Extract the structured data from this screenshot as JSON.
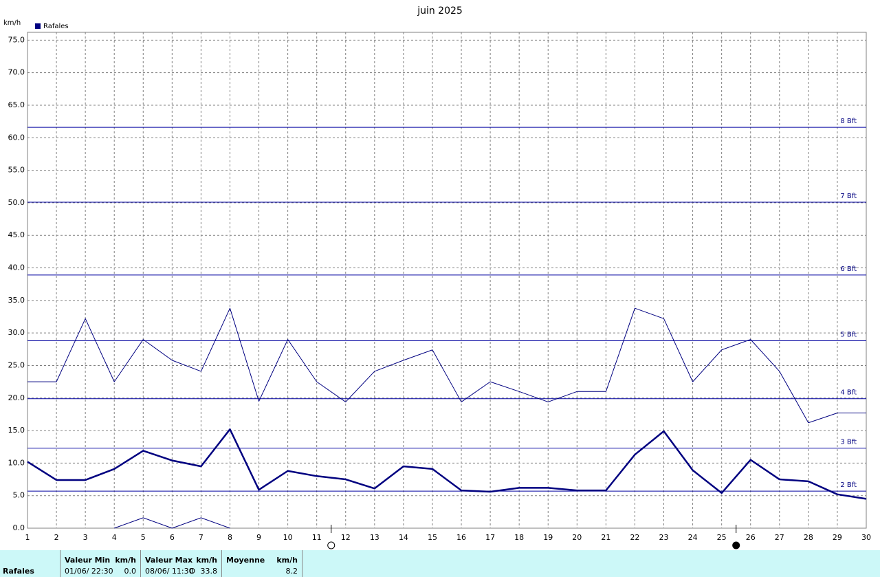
{
  "chart_data": {
    "type": "line",
    "title": "juin 2025",
    "y_label": "km/h",
    "legend": {
      "label": "Rafales",
      "color": "#000080"
    },
    "x": [
      1,
      2,
      3,
      4,
      5,
      6,
      7,
      8,
      9,
      10,
      11,
      12,
      13,
      14,
      15,
      16,
      17,
      18,
      19,
      20,
      21,
      22,
      23,
      24,
      25,
      26,
      27,
      28,
      29,
      30
    ],
    "series": [
      {
        "color": "#000080",
        "width": 1,
        "values": [
          22.5,
          22.5,
          32.2,
          22.5,
          29.0,
          25.8,
          24.1,
          33.8,
          19.5,
          29.0,
          22.5,
          19.4,
          24.1,
          25.8,
          27.4,
          19.4,
          22.5,
          21.0,
          19.4,
          21.0,
          21.0,
          33.8,
          32.2,
          22.5,
          27.4,
          29.0,
          24.1,
          16.2,
          17.7,
          17.7
        ]
      },
      {
        "color": "#000080",
        "width": 2.5,
        "values": [
          10.2,
          7.4,
          7.4,
          9.1,
          11.9,
          10.4,
          9.5,
          15.2,
          5.9,
          8.8,
          8.0,
          7.5,
          6.1,
          9.5,
          9.1,
          5.8,
          5.6,
          6.2,
          6.2,
          5.8,
          5.8,
          11.3,
          14.9,
          8.9,
          5.4,
          10.5,
          7.5,
          7.2,
          5.2,
          4.5
        ]
      },
      {
        "color": "#000080",
        "width": 1,
        "values": [
          null,
          null,
          null,
          0,
          1.6,
          0,
          1.6,
          0,
          null,
          null,
          null,
          null,
          null,
          null,
          null,
          null,
          null,
          null,
          null,
          null,
          null,
          null,
          null,
          null,
          null,
          null,
          null,
          null,
          null,
          null
        ]
      }
    ],
    "xlim": [
      1,
      30
    ],
    "xticks": [
      1,
      2,
      3,
      4,
      5,
      6,
      7,
      8,
      9,
      10,
      11,
      12,
      13,
      14,
      15,
      16,
      17,
      18,
      19,
      20,
      21,
      22,
      23,
      24,
      25,
      26,
      27,
      28,
      29,
      30
    ],
    "ylim": [
      0,
      76.2
    ],
    "yticks": [
      {
        "value": 0,
        "label": "0.0"
      },
      {
        "value": 5,
        "label": "5.0"
      },
      {
        "value": 10,
        "label": "10.0"
      },
      {
        "value": 15,
        "label": "15.0"
      },
      {
        "value": 20,
        "label": "20.0"
      },
      {
        "value": 25,
        "label": "25.0"
      },
      {
        "value": 30,
        "label": "30.0"
      },
      {
        "value": 35,
        "label": "35.0"
      },
      {
        "value": 40,
        "label": "40.0"
      },
      {
        "value": 45,
        "label": "45.0"
      },
      {
        "value": 50,
        "label": "50.0"
      },
      {
        "value": 55,
        "label": "55.0"
      },
      {
        "value": 60,
        "label": "60.0"
      },
      {
        "value": 65,
        "label": "65.0"
      },
      {
        "value": 70,
        "label": "70.0"
      },
      {
        "value": 75,
        "label": "75.0"
      }
    ],
    "grid": true,
    "beaufort_lines": [
      {
        "value": 5.7,
        "label": "2 Bft"
      },
      {
        "value": 12.3,
        "label": "3 Bft"
      },
      {
        "value": 19.9,
        "label": "4 Bft"
      },
      {
        "value": 28.8,
        "label": "5 Bft"
      },
      {
        "value": 38.9,
        "label": "6 Bft"
      },
      {
        "value": 50.1,
        "label": "7 Bft"
      },
      {
        "value": 61.6,
        "label": "8 Bft"
      }
    ],
    "moon_markers": [
      {
        "x": 11.5,
        "fill": "#ffffff"
      },
      {
        "x": 25.5,
        "fill": "#000000"
      }
    ]
  },
  "summary_table": {
    "row_label": "Rafales",
    "columns": [
      {
        "title": "Valeur Min",
        "unit": "km/h",
        "date": "01/06/ 22:30",
        "value": "0.0"
      },
      {
        "title": "Valeur Max",
        "unit": "km/h",
        "date": "08/06/ 11:30",
        "direction": "O",
        "value": "33.8"
      },
      {
        "title": "Moyenne",
        "unit": "km/h",
        "value": "8.2"
      }
    ]
  }
}
